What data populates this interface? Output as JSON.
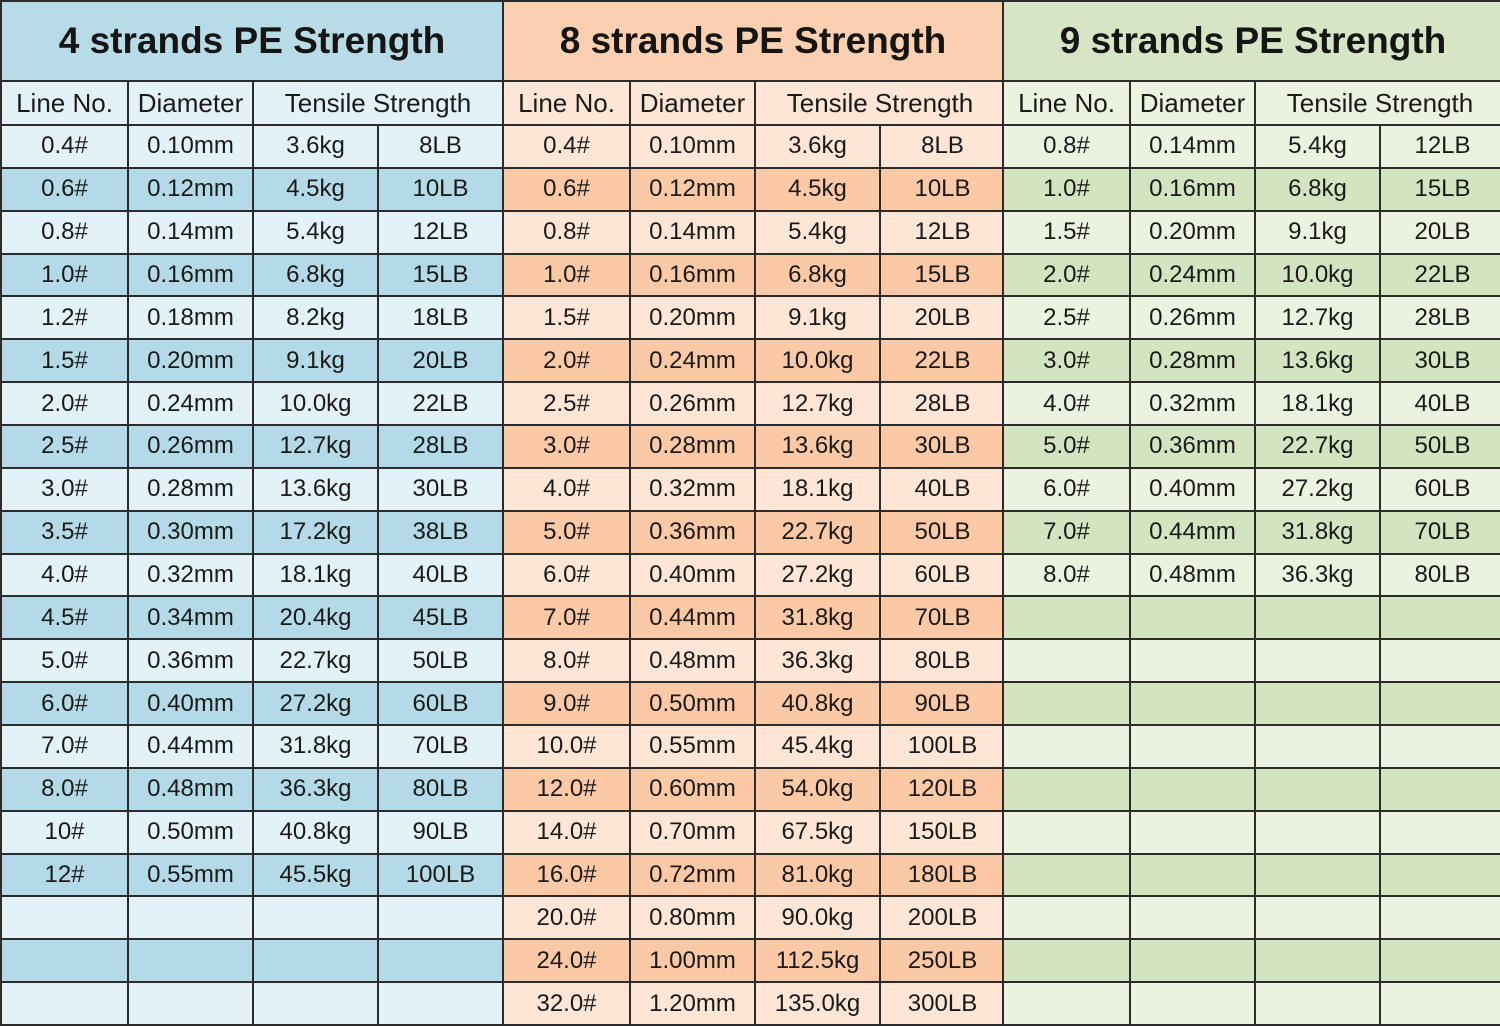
{
  "column_headers": {
    "line_no": "Line No.",
    "diameter": "Diameter",
    "tensile_strength": "Tensile Strength"
  },
  "tables": [
    {
      "title": "4 strands PE Strength",
      "colors": {
        "title_bg": "#b7dbe7",
        "light_row": "#e3f2f8",
        "dark_row": "#b3dae6"
      },
      "rows": [
        [
          "0.4#",
          "0.10mm",
          "3.6kg",
          "8LB"
        ],
        [
          "0.6#",
          "0.12mm",
          "4.5kg",
          "10LB"
        ],
        [
          "0.8#",
          "0.14mm",
          "5.4kg",
          "12LB"
        ],
        [
          "1.0#",
          "0.16mm",
          "6.8kg",
          "15LB"
        ],
        [
          "1.2#",
          "0.18mm",
          "8.2kg",
          "18LB"
        ],
        [
          "1.5#",
          "0.20mm",
          "9.1kg",
          "20LB"
        ],
        [
          "2.0#",
          "0.24mm",
          "10.0kg",
          "22LB"
        ],
        [
          "2.5#",
          "0.26mm",
          "12.7kg",
          "28LB"
        ],
        [
          "3.0#",
          "0.28mm",
          "13.6kg",
          "30LB"
        ],
        [
          "3.5#",
          "0.30mm",
          "17.2kg",
          "38LB"
        ],
        [
          "4.0#",
          "0.32mm",
          "18.1kg",
          "40LB"
        ],
        [
          "4.5#",
          "0.34mm",
          "20.4kg",
          "45LB"
        ],
        [
          "5.0#",
          "0.36mm",
          "22.7kg",
          "50LB"
        ],
        [
          "6.0#",
          "0.40mm",
          "27.2kg",
          "60LB"
        ],
        [
          "7.0#",
          "0.44mm",
          "31.8kg",
          "70LB"
        ],
        [
          "8.0#",
          "0.48mm",
          "36.3kg",
          "80LB"
        ],
        [
          "10#",
          "0.50mm",
          "40.8kg",
          "90LB"
        ],
        [
          "12#",
          "0.55mm",
          "45.5kg",
          "100LB"
        ],
        [
          "",
          "",
          "",
          ""
        ],
        [
          "",
          "",
          "",
          ""
        ],
        [
          "",
          "",
          "",
          ""
        ]
      ]
    },
    {
      "title": "8 strands PE Strength",
      "colors": {
        "title_bg": "#fbd0b0",
        "light_row": "#fde6d6",
        "dark_row": "#fbc9a6"
      },
      "rows": [
        [
          "0.4#",
          "0.10mm",
          "3.6kg",
          "8LB"
        ],
        [
          "0.6#",
          "0.12mm",
          "4.5kg",
          "10LB"
        ],
        [
          "0.8#",
          "0.14mm",
          "5.4kg",
          "12LB"
        ],
        [
          "1.0#",
          "0.16mm",
          "6.8kg",
          "15LB"
        ],
        [
          "1.5#",
          "0.20mm",
          "9.1kg",
          "20LB"
        ],
        [
          "2.0#",
          "0.24mm",
          "10.0kg",
          "22LB"
        ],
        [
          "2.5#",
          "0.26mm",
          "12.7kg",
          "28LB"
        ],
        [
          "3.0#",
          "0.28mm",
          "13.6kg",
          "30LB"
        ],
        [
          "4.0#",
          "0.32mm",
          "18.1kg",
          "40LB"
        ],
        [
          "5.0#",
          "0.36mm",
          "22.7kg",
          "50LB"
        ],
        [
          "6.0#",
          "0.40mm",
          "27.2kg",
          "60LB"
        ],
        [
          "7.0#",
          "0.44mm",
          "31.8kg",
          "70LB"
        ],
        [
          "8.0#",
          "0.48mm",
          "36.3kg",
          "80LB"
        ],
        [
          "9.0#",
          "0.50mm",
          "40.8kg",
          "90LB"
        ],
        [
          "10.0#",
          "0.55mm",
          "45.4kg",
          "100LB"
        ],
        [
          "12.0#",
          "0.60mm",
          "54.0kg",
          "120LB"
        ],
        [
          "14.0#",
          "0.70mm",
          "67.5kg",
          "150LB"
        ],
        [
          "16.0#",
          "0.72mm",
          "81.0kg",
          "180LB"
        ],
        [
          "20.0#",
          "0.80mm",
          "90.0kg",
          "200LB"
        ],
        [
          "24.0#",
          "1.00mm",
          "112.5kg",
          "250LB"
        ],
        [
          "32.0#",
          "1.20mm",
          "135.0kg",
          "300LB"
        ]
      ]
    },
    {
      "title": "9 strands PE Strength",
      "colors": {
        "title_bg": "#d6e6c4",
        "light_row": "#ebf3e0",
        "dark_row": "#d3e5c0"
      },
      "rows": [
        [
          "0.8#",
          "0.14mm",
          "5.4kg",
          "12LB"
        ],
        [
          "1.0#",
          "0.16mm",
          "6.8kg",
          "15LB"
        ],
        [
          "1.5#",
          "0.20mm",
          "9.1kg",
          "20LB"
        ],
        [
          "2.0#",
          "0.24mm",
          "10.0kg",
          "22LB"
        ],
        [
          "2.5#",
          "0.26mm",
          "12.7kg",
          "28LB"
        ],
        [
          "3.0#",
          "0.28mm",
          "13.6kg",
          "30LB"
        ],
        [
          "4.0#",
          "0.32mm",
          "18.1kg",
          "40LB"
        ],
        [
          "5.0#",
          "0.36mm",
          "22.7kg",
          "50LB"
        ],
        [
          "6.0#",
          "0.40mm",
          "27.2kg",
          "60LB"
        ],
        [
          "7.0#",
          "0.44mm",
          "31.8kg",
          "70LB"
        ],
        [
          "8.0#",
          "0.48mm",
          "36.3kg",
          "80LB"
        ],
        [
          "",
          "",
          "",
          ""
        ],
        [
          "",
          "",
          "",
          ""
        ],
        [
          "",
          "",
          "",
          ""
        ],
        [
          "",
          "",
          "",
          ""
        ],
        [
          "",
          "",
          "",
          ""
        ],
        [
          "",
          "",
          "",
          ""
        ],
        [
          "",
          "",
          "",
          ""
        ],
        [
          "",
          "",
          "",
          ""
        ],
        [
          "",
          "",
          "",
          ""
        ],
        [
          "",
          "",
          "",
          ""
        ]
      ]
    }
  ]
}
